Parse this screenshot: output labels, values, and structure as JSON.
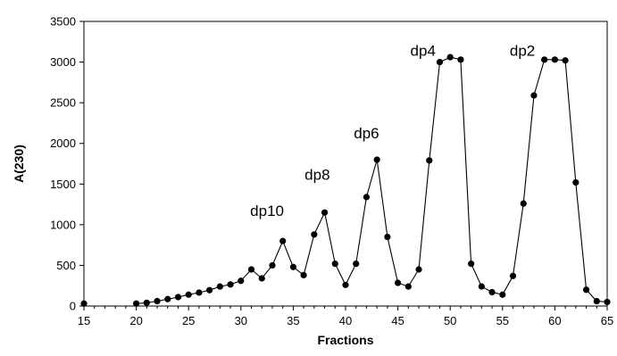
{
  "chart_data": {
    "type": "line",
    "xlabel": "Fractions",
    "ylabel": "A(230)",
    "xlim": [
      15,
      65
    ],
    "ylim": [
      0,
      3500
    ],
    "x_ticks": [
      15,
      20,
      25,
      30,
      35,
      40,
      45,
      50,
      55,
      60,
      65
    ],
    "y_ticks": [
      0,
      500,
      1000,
      1500,
      2000,
      2500,
      3000,
      3500
    ],
    "grid": false,
    "legend": "none",
    "colors": {
      "line": "#000000",
      "marker": "#000000"
    },
    "series": [
      {
        "points": [
          [
            15,
            30
          ],
          [
            20,
            30
          ],
          [
            21,
            40
          ],
          [
            22,
            60
          ],
          [
            23,
            85
          ],
          [
            24,
            110
          ],
          [
            25,
            140
          ],
          [
            26,
            165
          ],
          [
            27,
            195
          ],
          [
            28,
            240
          ],
          [
            29,
            265
          ],
          [
            30,
            310
          ],
          [
            31,
            450
          ],
          [
            32,
            340
          ],
          [
            33,
            500
          ],
          [
            34,
            800
          ],
          [
            35,
            480
          ],
          [
            36,
            380
          ],
          [
            37,
            880
          ],
          [
            38,
            1150
          ],
          [
            39,
            520
          ],
          [
            40,
            260
          ],
          [
            41,
            520
          ],
          [
            42,
            1340
          ],
          [
            43,
            1800
          ],
          [
            44,
            850
          ],
          [
            45,
            285
          ],
          [
            46,
            240
          ],
          [
            47,
            450
          ],
          [
            48,
            1790
          ],
          [
            49,
            3000
          ],
          [
            50,
            3060
          ],
          [
            51,
            3030
          ],
          [
            52,
            520
          ],
          [
            53,
            240
          ],
          [
            54,
            170
          ],
          [
            55,
            140
          ],
          [
            56,
            370
          ],
          [
            57,
            1260
          ],
          [
            58,
            2590
          ],
          [
            59,
            3030
          ],
          [
            60,
            3030
          ],
          [
            61,
            3020
          ],
          [
            62,
            1520
          ],
          [
            63,
            200
          ],
          [
            64,
            60
          ],
          [
            65,
            50
          ]
        ]
      }
    ],
    "annotations": [
      {
        "text": "dp10",
        "x": 32.5,
        "y": 1110
      },
      {
        "text": "dp8",
        "x": 37.3,
        "y": 1550
      },
      {
        "text": "dp6",
        "x": 42.0,
        "y": 2060
      },
      {
        "text": "dp4",
        "x": 47.4,
        "y": 3080
      },
      {
        "text": "dp2",
        "x": 56.9,
        "y": 3080
      }
    ]
  }
}
